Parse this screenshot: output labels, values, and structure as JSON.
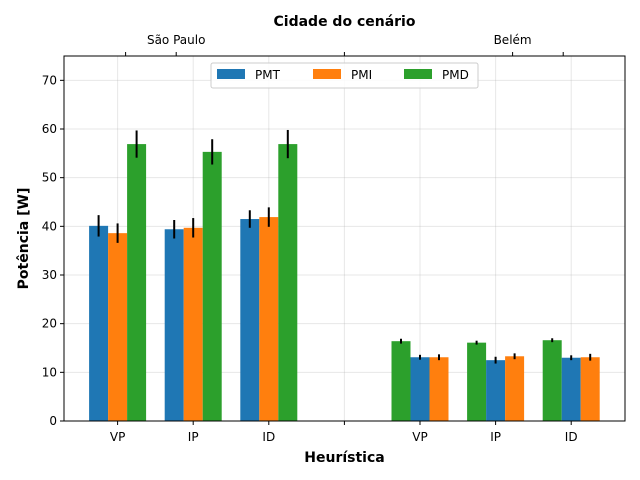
{
  "chart_data": {
    "type": "bar",
    "xlabel": "Heurística",
    "ylabel": "Potência [W]",
    "top_axis_title": "Cidade do cenário",
    "cities": [
      "São Paulo",
      "Belém"
    ],
    "categories": [
      "VP",
      "IP",
      "ID",
      "",
      "VP",
      "IP",
      "ID"
    ],
    "ylim": [
      0,
      75
    ],
    "yticks": [
      0,
      10,
      20,
      30,
      40,
      50,
      60,
      70
    ],
    "grid": true,
    "legend_placement": "upper center",
    "colors": {
      "PMT": "#1f77b4",
      "PMI": "#ff7f0e",
      "PMD": "#2ca02c"
    },
    "series": [
      {
        "name": "PMT",
        "values": [
          40.1,
          39.4,
          41.5,
          null,
          13.1,
          12.5,
          13.0
        ],
        "errors": [
          2.2,
          1.9,
          1.8,
          null,
          0.5,
          0.7,
          0.5
        ]
      },
      {
        "name": "PMI",
        "values": [
          38.6,
          39.7,
          41.9,
          null,
          13.1,
          13.3,
          13.1
        ],
        "errors": [
          2.0,
          2.0,
          2.0,
          null,
          0.6,
          0.6,
          0.7
        ]
      },
      {
        "name": "PMD",
        "values": [
          56.9,
          55.3,
          56.9,
          null,
          16.4,
          16.1,
          16.6
        ],
        "errors": [
          2.8,
          2.6,
          2.9,
          null,
          0.5,
          0.4,
          0.4
        ]
      }
    ],
    "layout_note": "Belém group bars are drawn in order PMD, PMT, PMI"
  }
}
